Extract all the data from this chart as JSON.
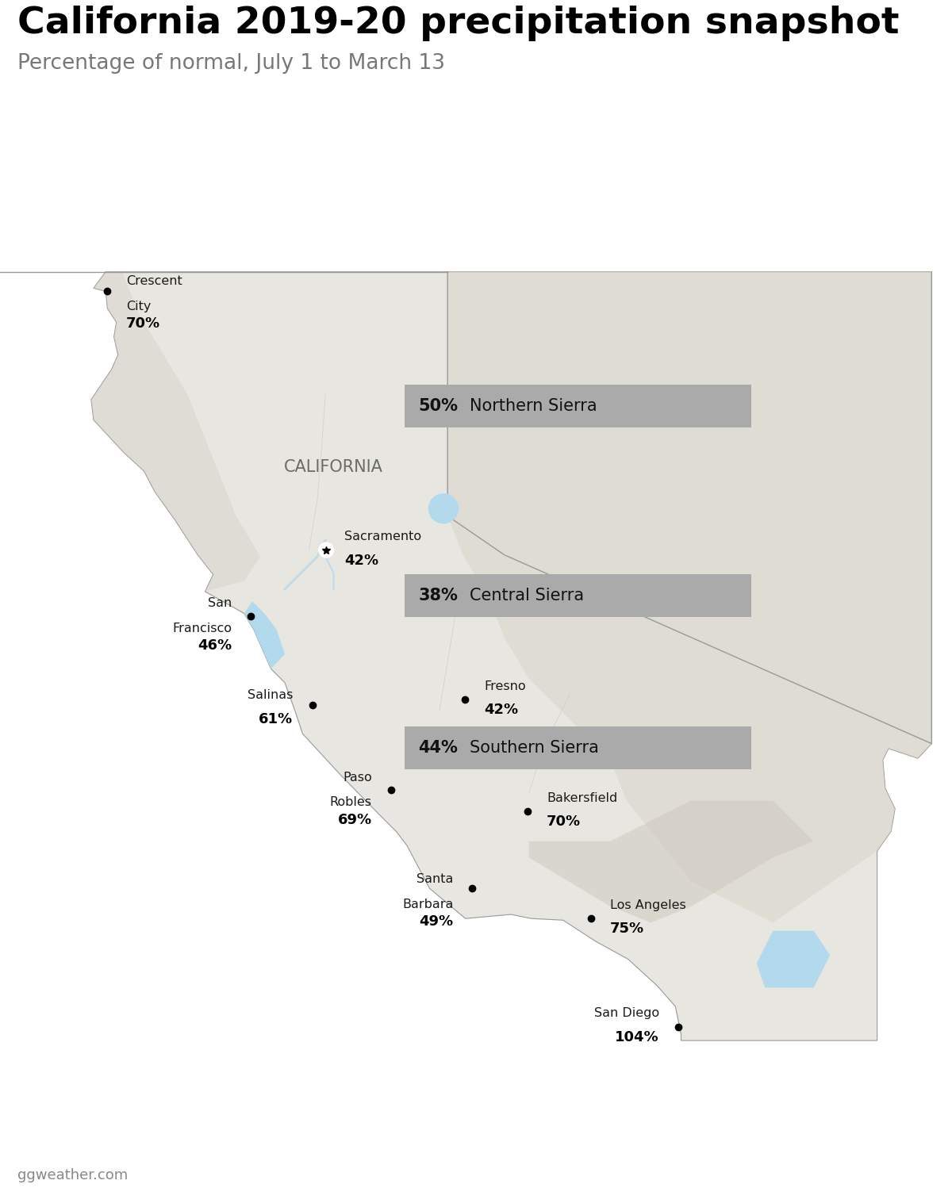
{
  "title": "California 2019-20 precipitation snapshot",
  "subtitle": "Percentage of normal, July 1 to March 13",
  "attribution": "ggweather.com",
  "title_fontsize": 34,
  "subtitle_fontsize": 19,
  "attr_fontsize": 13,
  "map_extent": [
    -125.5,
    -113.8,
    32.1,
    42.3
  ],
  "ocean_color": "#b3d9ed",
  "land_color": "#e8e6e0",
  "sierra_color": "#d8d5cc",
  "mountain_color": "#ccc9bf",
  "border_color": "#999999",
  "title_color": "#000000",
  "subtitle_color": "#777777",
  "attr_color": "#888888",
  "cities": [
    {
      "name": "Crescent\nCity",
      "pct": "70%",
      "lon": -124.18,
      "lat": 41.76,
      "nx": -123.95,
      "ny": 41.73,
      "ha": "left",
      "capital": false
    },
    {
      "name": "Sacramento",
      "pct": "42%",
      "lon": -121.49,
      "lat": 38.58,
      "nx": -121.27,
      "ny": 38.62,
      "ha": "left",
      "capital": true
    },
    {
      "name": "San\nFrancisco",
      "pct": "46%",
      "lon": -122.42,
      "lat": 37.77,
      "nx": -122.65,
      "ny": 37.77,
      "ha": "right",
      "capital": false
    },
    {
      "name": "Salinas",
      "pct": "61%",
      "lon": -121.66,
      "lat": 36.67,
      "nx": -121.9,
      "ny": 36.67,
      "ha": "right",
      "capital": false
    },
    {
      "name": "Fresno",
      "pct": "42%",
      "lon": -119.79,
      "lat": 36.74,
      "nx": -119.55,
      "ny": 36.78,
      "ha": "left",
      "capital": false
    },
    {
      "name": "Paso\nRobles",
      "pct": "69%",
      "lon": -120.69,
      "lat": 35.63,
      "nx": -120.93,
      "ny": 35.63,
      "ha": "right",
      "capital": false
    },
    {
      "name": "Bakersfield",
      "pct": "70%",
      "lon": -119.02,
      "lat": 35.37,
      "nx": -118.78,
      "ny": 35.41,
      "ha": "left",
      "capital": false
    },
    {
      "name": "Santa\nBarbara",
      "pct": "49%",
      "lon": -119.7,
      "lat": 34.42,
      "nx": -119.93,
      "ny": 34.38,
      "ha": "right",
      "capital": false
    },
    {
      "name": "Los Angeles",
      "pct": "75%",
      "lon": -118.24,
      "lat": 34.05,
      "nx": -118.0,
      "ny": 34.09,
      "ha": "left",
      "capital": false
    },
    {
      "name": "San Diego",
      "pct": "104%",
      "lon": -117.16,
      "lat": 32.72,
      "nx": -117.4,
      "ny": 32.76,
      "ha": "right",
      "capital": false
    }
  ],
  "sierra_boxes": [
    {
      "pct": "50%",
      "name": "Northern Sierra",
      "lon": -120.5,
      "lat": 40.35,
      "ha": "left",
      "bg": "#aaaaaa"
    },
    {
      "pct": "38%",
      "name": "Central Sierra",
      "lon": -120.5,
      "lat": 38.02,
      "ha": "left",
      "bg": "#aaaaaa"
    },
    {
      "pct": "44%",
      "name": "Southern Sierra",
      "lon": -120.5,
      "lat": 36.15,
      "ha": "left",
      "bg": "#aaaaaa"
    }
  ],
  "california_label": {
    "text": "CALIFORNIA",
    "lon": -121.4,
    "lat": 39.6
  },
  "ca_coastline": [
    [
      -124.21,
      41.99
    ],
    [
      -124.35,
      41.8
    ],
    [
      -124.2,
      41.76
    ],
    [
      -124.18,
      41.55
    ],
    [
      -124.07,
      41.38
    ],
    [
      -124.1,
      41.2
    ],
    [
      -124.05,
      40.98
    ],
    [
      -124.13,
      40.8
    ],
    [
      -124.38,
      40.43
    ],
    [
      -124.35,
      40.18
    ],
    [
      -123.98,
      39.78
    ],
    [
      -123.73,
      39.55
    ],
    [
      -123.6,
      39.3
    ],
    [
      -123.35,
      38.95
    ],
    [
      -123.07,
      38.52
    ],
    [
      -122.88,
      38.28
    ],
    [
      -122.98,
      38.07
    ],
    [
      -122.62,
      37.87
    ],
    [
      -122.5,
      37.8
    ],
    [
      -122.38,
      37.6
    ],
    [
      -122.17,
      37.12
    ],
    [
      -122.0,
      36.95
    ],
    [
      -121.88,
      36.62
    ],
    [
      -121.78,
      36.32
    ],
    [
      -121.3,
      35.8
    ],
    [
      -120.86,
      35.35
    ],
    [
      -120.63,
      35.12
    ],
    [
      -120.5,
      34.95
    ],
    [
      -120.22,
      34.42
    ],
    [
      -119.78,
      34.05
    ],
    [
      -119.22,
      34.1
    ],
    [
      -118.97,
      34.05
    ],
    [
      -118.58,
      34.03
    ],
    [
      -118.18,
      33.77
    ],
    [
      -117.78,
      33.55
    ],
    [
      -117.42,
      33.22
    ],
    [
      -117.2,
      32.97
    ],
    [
      -117.13,
      32.63
    ],
    [
      -117.13,
      32.55
    ],
    [
      -114.72,
      32.55
    ],
    [
      -114.72,
      34.88
    ],
    [
      -114.55,
      35.12
    ],
    [
      -114.5,
      35.4
    ],
    [
      -114.62,
      35.65
    ],
    [
      -114.65,
      36.0
    ],
    [
      -114.58,
      36.14
    ],
    [
      -114.22,
      36.02
    ],
    [
      -114.05,
      36.2
    ],
    [
      -114.05,
      37.0
    ],
    [
      -114.05,
      38.57
    ],
    [
      -114.05,
      42.0
    ],
    [
      -124.21,
      42.0
    ],
    [
      -124.21,
      41.99
    ]
  ],
  "state_line_lon": -120.0,
  "nevada_line": [
    [
      -120.0,
      42.0
    ],
    [
      -120.0,
      39.0
    ],
    [
      -119.3,
      38.52
    ],
    [
      -114.05,
      36.2
    ],
    [
      -114.05,
      42.0
    ]
  ],
  "rivers": [
    [
      [
        -121.5,
        40.5
      ],
      [
        -121.55,
        39.8
      ],
      [
        -121.6,
        39.2
      ],
      [
        -121.7,
        38.6
      ]
    ],
    [
      [
        -119.8,
        38.2
      ],
      [
        -119.9,
        37.8
      ],
      [
        -120.0,
        37.2
      ],
      [
        -120.1,
        36.6
      ]
    ],
    [
      [
        -118.5,
        36.8
      ],
      [
        -118.8,
        36.2
      ],
      [
        -119.0,
        35.6
      ]
    ]
  ]
}
